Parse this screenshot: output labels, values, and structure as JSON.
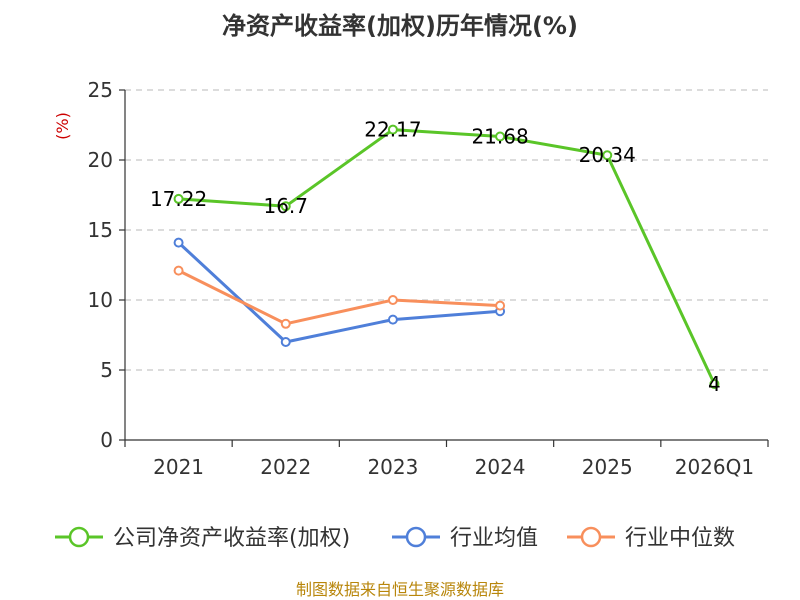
{
  "chart_data": {
    "type": "line",
    "title": "净资产收益率(加权)历年情况(%)",
    "ylabel": "(%)",
    "xlabel": "",
    "categories": [
      "2021",
      "2022",
      "2023",
      "2024",
      "2025",
      "2026Q1"
    ],
    "ylim": [
      0,
      25
    ],
    "yticks": [
      0,
      5,
      10,
      15,
      20,
      25
    ],
    "grid": "horizontal-dashed",
    "legend_position": "bottom",
    "series": [
      {
        "name": "公司净资产收益率(加权)",
        "color": "#5ac528",
        "values": [
          17.22,
          16.7,
          22.17,
          21.68,
          20.34,
          4
        ],
        "labels": [
          "17.22",
          "16.7",
          "22.17",
          "21.68",
          "20.34",
          "4"
        ]
      },
      {
        "name": "行业均值",
        "color": "#4f7fd9",
        "values": [
          14.1,
          7.0,
          8.6,
          9.2,
          null,
          null
        ]
      },
      {
        "name": "行业中位数",
        "color": "#f88f5c",
        "values": [
          12.1,
          8.3,
          10.0,
          9.6,
          null,
          null
        ]
      }
    ]
  },
  "footer": {
    "source": "制图数据来自恒生聚源数据库"
  }
}
